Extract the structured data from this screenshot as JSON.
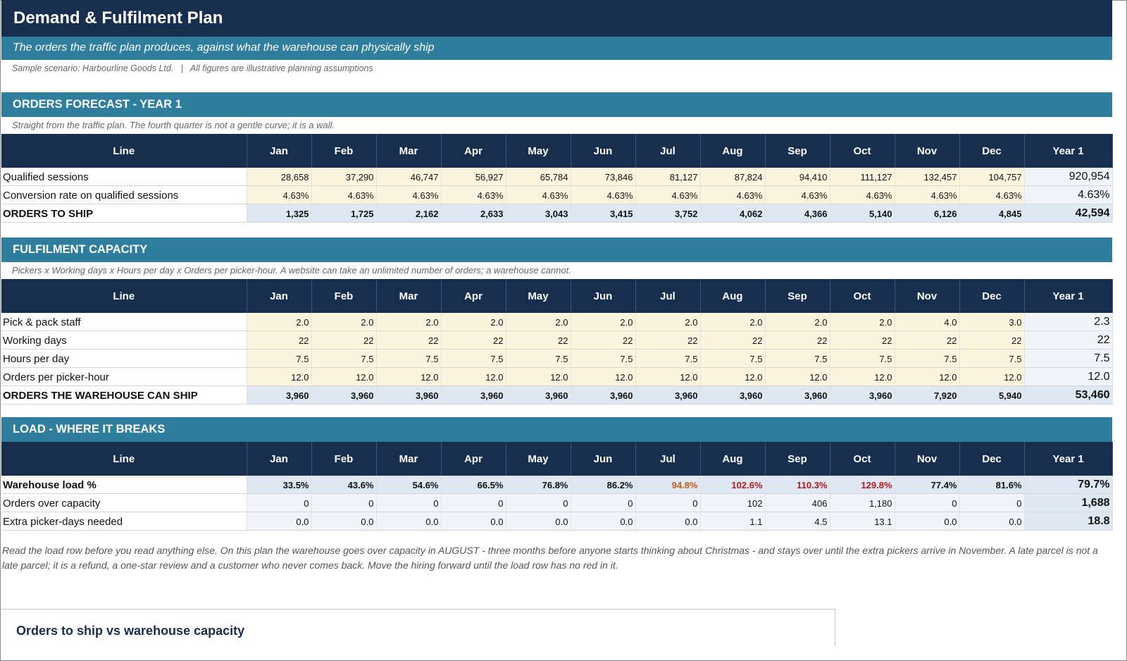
{
  "header": {
    "title": "Demand & Fulfilment Plan",
    "subtitle": "The orders the traffic plan produces, against what the warehouse can physically ship",
    "scenario": "Sample scenario: Harbourline Goods Ltd.   |   All figures are illustrative planning assumptions"
  },
  "columns": [
    "Line",
    "Jan",
    "Feb",
    "Mar",
    "Apr",
    "May",
    "Jun",
    "Jul",
    "Aug",
    "Sep",
    "Oct",
    "Nov",
    "Dec",
    "Year 1"
  ],
  "sections": [
    {
      "title": "ORDERS FORECAST - YEAR 1",
      "note": "Straight from the traffic plan. The fourth quarter is not a gentle curve; it is a wall.",
      "rows": [
        {
          "label": "Qualified sessions",
          "kind": "input",
          "values": [
            "28,658",
            "37,290",
            "46,747",
            "56,927",
            "65,784",
            "73,846",
            "81,127",
            "87,824",
            "94,410",
            "111,127",
            "132,457",
            "104,757"
          ],
          "total": "920,954"
        },
        {
          "label": "Conversion rate on qualified sessions",
          "kind": "input",
          "values": [
            "4.63%",
            "4.63%",
            "4.63%",
            "4.63%",
            "4.63%",
            "4.63%",
            "4.63%",
            "4.63%",
            "4.63%",
            "4.63%",
            "4.63%",
            "4.63%"
          ],
          "total": "4.63%"
        },
        {
          "label": "ORDERS TO SHIP",
          "kind": "calc",
          "values": [
            "1,325",
            "1,725",
            "2,162",
            "2,633",
            "3,043",
            "3,415",
            "3,752",
            "4,062",
            "4,366",
            "5,140",
            "6,126",
            "4,845"
          ],
          "total": "42,594"
        }
      ]
    },
    {
      "title": "FULFILMENT CAPACITY",
      "note": "Pickers x Working days x Hours per day x Orders per picker-hour. A website can take an unlimited number of orders; a warehouse cannot.",
      "rows": [
        {
          "label": "Pick & pack staff",
          "kind": "input",
          "values": [
            "2.0",
            "2.0",
            "2.0",
            "2.0",
            "2.0",
            "2.0",
            "2.0",
            "2.0",
            "2.0",
            "2.0",
            "4.0",
            "3.0"
          ],
          "total": "2.3"
        },
        {
          "label": "Working days",
          "kind": "input",
          "values": [
            "22",
            "22",
            "22",
            "22",
            "22",
            "22",
            "22",
            "22",
            "22",
            "22",
            "22",
            "22"
          ],
          "total": "22"
        },
        {
          "label": "Hours per day",
          "kind": "input",
          "values": [
            "7.5",
            "7.5",
            "7.5",
            "7.5",
            "7.5",
            "7.5",
            "7.5",
            "7.5",
            "7.5",
            "7.5",
            "7.5",
            "7.5"
          ],
          "total": "7.5"
        },
        {
          "label": "Orders per picker-hour",
          "kind": "input",
          "values": [
            "12.0",
            "12.0",
            "12.0",
            "12.0",
            "12.0",
            "12.0",
            "12.0",
            "12.0",
            "12.0",
            "12.0",
            "12.0",
            "12.0"
          ],
          "total": "12.0"
        },
        {
          "label": "ORDERS THE WAREHOUSE CAN SHIP",
          "kind": "calc",
          "values": [
            "3,960",
            "3,960",
            "3,960",
            "3,960",
            "3,960",
            "3,960",
            "3,960",
            "3,960",
            "3,960",
            "3,960",
            "7,920",
            "5,940"
          ],
          "total": "53,460"
        }
      ]
    },
    {
      "title": "LOAD - WHERE IT BREAKS",
      "note": "",
      "rows": [
        {
          "label": "Warehouse load %",
          "kind": "calc",
          "values": [
            "33.5%",
            "43.6%",
            "54.6%",
            "66.5%",
            "76.8%",
            "86.2%",
            "94.8%",
            "102.6%",
            "110.3%",
            "129.8%",
            "77.4%",
            "81.6%"
          ],
          "total": "79.7%",
          "status": [
            "",
            "",
            "",
            "",
            "",
            "",
            "amber",
            "red",
            "red",
            "red",
            "",
            ""
          ]
        },
        {
          "label": "Orders over capacity",
          "kind": "light",
          "values": [
            "0",
            "0",
            "0",
            "0",
            "0",
            "0",
            "0",
            "102",
            "406",
            "1,180",
            "0",
            "0"
          ],
          "total": "1,688"
        },
        {
          "label": "Extra picker-days needed",
          "kind": "light",
          "values": [
            "0.0",
            "0.0",
            "0.0",
            "0.0",
            "0.0",
            "0.0",
            "0.0",
            "1.1",
            "4.5",
            "13.1",
            "0.0",
            "0.0"
          ],
          "total": "18.8"
        }
      ]
    }
  ],
  "commentary": "Read the load row before you read anything else. On this plan the warehouse goes over capacity in AUGUST - three months before anyone starts thinking about Christmas - and stays over until the extra pickers arrive in November. A late parcel is not a late parcel; it is a refund, a one-star review and a customer who never comes back. Move the hiring forward until the load row has no red in it.",
  "chart": {
    "title": "Orders to ship vs warehouse capacity"
  },
  "colors": {
    "navy": "#172e4f",
    "teal": "#2f7e9e",
    "input": "#fdf4de",
    "calc": "#dde8f2",
    "amber": "#c45a1b",
    "red": "#b3191d"
  }
}
